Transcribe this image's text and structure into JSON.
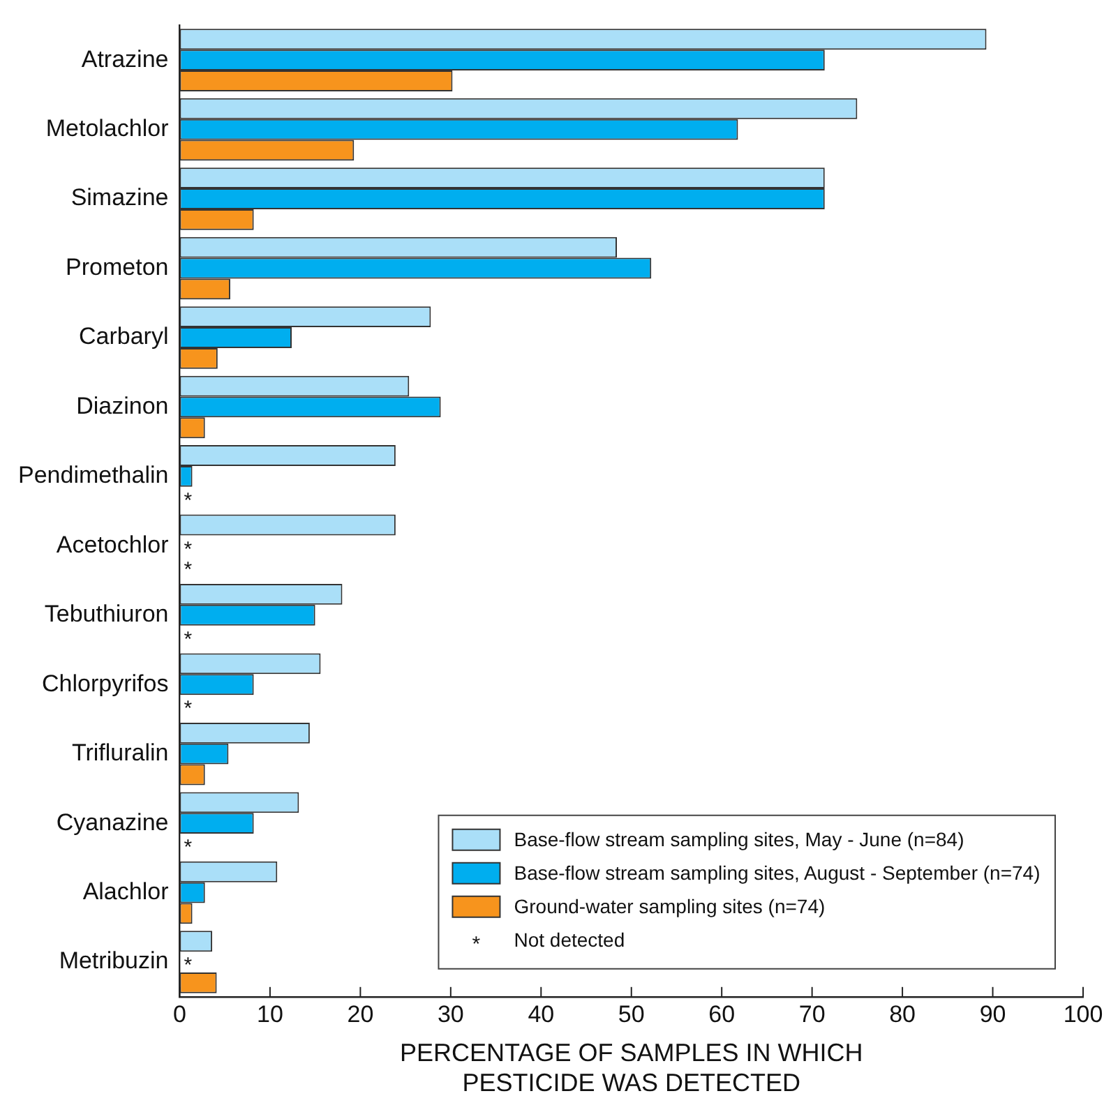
{
  "chart_data": {
    "type": "bar",
    "orientation": "horizontal",
    "xlabel": "PERCENTAGE OF SAMPLES IN WHICH\nPESTICIDE WAS DETECTED",
    "categories": [
      "Atrazine",
      "Metolachlor",
      "Simazine",
      "Prometon",
      "Carbaryl",
      "Diazinon",
      "Pendimethalin",
      "Acetochlor",
      "Tebuthiuron",
      "Chlorpyrifos",
      "Trifluralin",
      "Cyanazine",
      "Alachlor",
      "Metribuzin"
    ],
    "series": [
      {
        "name": "Base-flow stream sampling sites, May - June (n=84)",
        "color": "#aadff8",
        "values": [
          89.3,
          75.0,
          71.4,
          48.4,
          27.8,
          25.4,
          23.9,
          23.9,
          18.0,
          15.6,
          14.4,
          13.2,
          10.8,
          3.6
        ]
      },
      {
        "name": "Base-flow stream sampling sites, August - September (n=74)",
        "color": "#00aeef",
        "values": [
          71.4,
          61.8,
          71.4,
          52.2,
          12.4,
          28.9,
          1.4,
          null,
          15.0,
          8.2,
          5.4,
          8.2,
          2.8,
          null
        ],
        "value_labels": [
          null,
          null,
          null,
          null,
          null,
          null,
          null,
          "*",
          null,
          null,
          null,
          null,
          null,
          "*"
        ]
      },
      {
        "name": "Ground-water sampling sites (n=74)",
        "color": "#f7941d",
        "values": [
          30.2,
          19.3,
          8.2,
          5.6,
          4.2,
          2.8,
          null,
          null,
          null,
          null,
          2.8,
          null,
          1.4,
          4.1
        ],
        "value_labels": [
          null,
          null,
          null,
          null,
          null,
          null,
          "*",
          "*",
          "*",
          "*",
          null,
          "*",
          null,
          null
        ]
      }
    ],
    "annotations": [
      "Not detected"
    ],
    "xlim": [
      0,
      100
    ],
    "xticks": [
      0,
      10,
      20,
      30,
      40,
      50,
      60,
      70,
      80,
      90,
      100
    ],
    "grid": false,
    "legend": "bottom right"
  }
}
